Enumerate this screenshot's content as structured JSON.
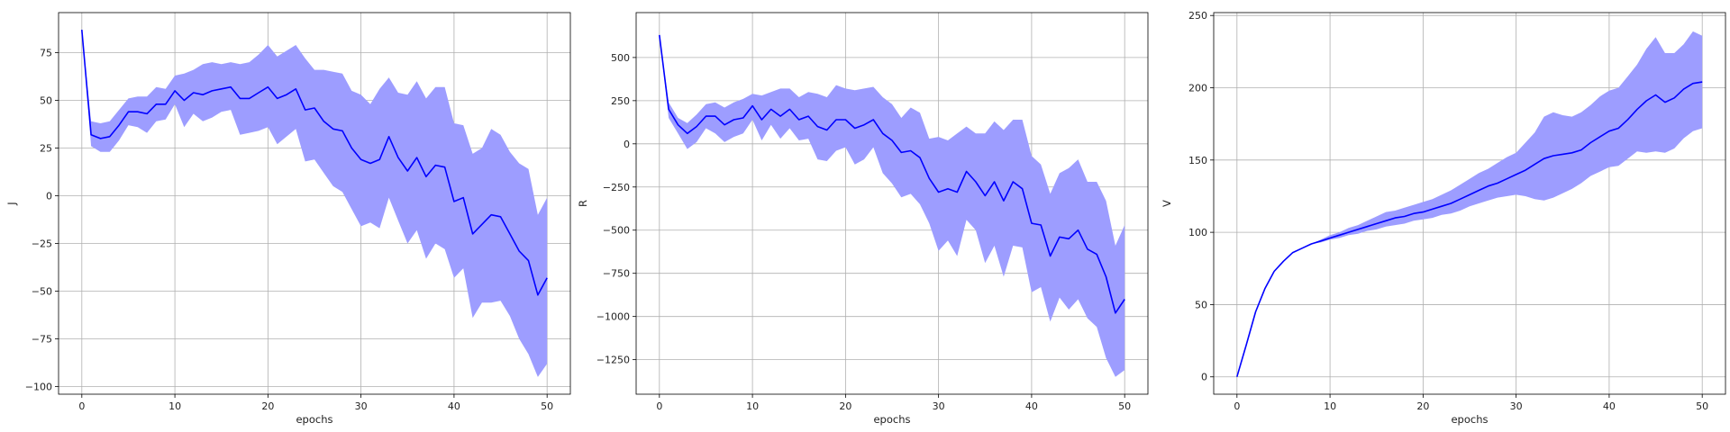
{
  "colors": {
    "line": "#0000ff",
    "band": "#9d9dff",
    "grid": "#b0b0b0",
    "frame": "#000000"
  },
  "chart_data": [
    {
      "type": "line",
      "xlabel": "epochs",
      "ylabel": "J",
      "xlim": [
        -2.5,
        52.5
      ],
      "ylim": [
        -104,
        96
      ],
      "xticks": [
        0,
        10,
        20,
        30,
        40,
        50
      ],
      "yticks": [
        -100,
        -75,
        -50,
        -25,
        0,
        25,
        50,
        75
      ],
      "ytick_labels": [
        "−100",
        "−75",
        "−50",
        "−25",
        "0",
        "25",
        "50",
        "75"
      ],
      "xtick_labels": [
        "0",
        "10",
        "20",
        "30",
        "40",
        "50"
      ],
      "grid": true,
      "x": [
        0,
        1,
        2,
        3,
        4,
        5,
        6,
        7,
        8,
        9,
        10,
        11,
        12,
        13,
        14,
        15,
        16,
        17,
        18,
        19,
        20,
        21,
        22,
        23,
        24,
        25,
        26,
        27,
        28,
        29,
        30,
        31,
        32,
        33,
        34,
        35,
        36,
        37,
        38,
        39,
        40,
        41,
        42,
        43,
        44,
        45,
        46,
        47,
        48,
        49,
        50
      ],
      "mean": [
        87,
        32,
        30,
        31,
        37,
        44,
        44,
        43,
        48,
        48,
        55,
        50,
        54,
        53,
        55,
        56,
        57,
        51,
        51,
        54,
        57,
        51,
        53,
        56,
        45,
        46,
        39,
        35,
        34,
        25,
        19,
        17,
        19,
        31,
        20,
        13,
        20,
        10,
        16,
        15,
        -3,
        -1,
        -20,
        -15,
        -10,
        -11,
        -20,
        -29,
        -34,
        -52,
        -43
      ],
      "upper": [
        87,
        39,
        38,
        39,
        45,
        51,
        52,
        52,
        57,
        56,
        63,
        64,
        66,
        69,
        70,
        69,
        70,
        69,
        70,
        74,
        79,
        73,
        76,
        79,
        72,
        66,
        66,
        65,
        64,
        55,
        53,
        48,
        56,
        62,
        54,
        53,
        60,
        51,
        57,
        57,
        38,
        37,
        22,
        25,
        35,
        32,
        23,
        17,
        14,
        -10,
        -1
      ],
      "lower": [
        87,
        26,
        23,
        23,
        29,
        37,
        36,
        33,
        39,
        40,
        48,
        36,
        43,
        39,
        41,
        44,
        45,
        32,
        33,
        34,
        36,
        27,
        31,
        35,
        18,
        19,
        12,
        5,
        2,
        -7,
        -16,
        -14,
        -17,
        -1,
        -13,
        -25,
        -18,
        -33,
        -25,
        -28,
        -43,
        -38,
        -64,
        -56,
        -56,
        -55,
        -63,
        -75,
        -83,
        -95,
        -88
      ]
    },
    {
      "type": "line",
      "xlabel": "epochs",
      "ylabel": "R",
      "xlim": [
        -2.5,
        52.5
      ],
      "ylim": [
        -1450,
        760
      ],
      "xticks": [
        0,
        10,
        20,
        30,
        40,
        50
      ],
      "yticks": [
        -1250,
        -1000,
        -750,
        -500,
        -250,
        0,
        250,
        500
      ],
      "ytick_labels": [
        "−1250",
        "−1000",
        "−750",
        "−500",
        "−250",
        "0",
        "250",
        "500"
      ],
      "xtick_labels": [
        "0",
        "10",
        "20",
        "30",
        "40",
        "50"
      ],
      "grid": true,
      "x": [
        0,
        1,
        2,
        3,
        4,
        5,
        6,
        7,
        8,
        9,
        10,
        11,
        12,
        13,
        14,
        15,
        16,
        17,
        18,
        19,
        20,
        21,
        22,
        23,
        24,
        25,
        26,
        27,
        28,
        29,
        30,
        31,
        32,
        33,
        34,
        35,
        36,
        37,
        38,
        39,
        40,
        41,
        42,
        43,
        44,
        45,
        46,
        47,
        48,
        49,
        50
      ],
      "mean": [
        630,
        200,
        110,
        60,
        100,
        160,
        160,
        110,
        140,
        150,
        220,
        140,
        200,
        160,
        200,
        140,
        160,
        100,
        80,
        140,
        140,
        90,
        110,
        140,
        60,
        20,
        -50,
        -40,
        -80,
        -200,
        -280,
        -260,
        -280,
        -160,
        -220,
        -300,
        -220,
        -330,
        -220,
        -260,
        -460,
        -470,
        -650,
        -540,
        -550,
        -500,
        -610,
        -640,
        -770,
        -980,
        -900
      ],
      "upper": [
        630,
        240,
        150,
        120,
        170,
        230,
        240,
        210,
        240,
        260,
        290,
        280,
        300,
        320,
        320,
        270,
        300,
        290,
        270,
        340,
        320,
        310,
        320,
        330,
        270,
        230,
        150,
        210,
        180,
        30,
        40,
        20,
        60,
        100,
        60,
        60,
        130,
        80,
        140,
        140,
        -70,
        -120,
        -290,
        -170,
        -140,
        -90,
        -220,
        -220,
        -330,
        -590,
        -470
      ],
      "lower": [
        630,
        150,
        60,
        -30,
        10,
        90,
        60,
        10,
        40,
        60,
        140,
        20,
        110,
        30,
        90,
        20,
        30,
        -90,
        -100,
        -40,
        -20,
        -120,
        -90,
        -20,
        -170,
        -230,
        -310,
        -290,
        -350,
        -460,
        -620,
        -560,
        -650,
        -440,
        -500,
        -690,
        -590,
        -770,
        -590,
        -600,
        -860,
        -830,
        -1030,
        -890,
        -960,
        -900,
        -1010,
        -1060,
        -1240,
        -1350,
        -1310
      ]
    },
    {
      "type": "line",
      "xlabel": "epochs",
      "ylabel": "V",
      "xlim": [
        -2.5,
        52.5
      ],
      "ylim": [
        -12,
        252
      ],
      "xticks": [
        0,
        10,
        20,
        30,
        40,
        50
      ],
      "yticks": [
        0,
        50,
        100,
        150,
        200,
        250
      ],
      "ytick_labels": [
        "0",
        "50",
        "100",
        "150",
        "200",
        "250"
      ],
      "xtick_labels": [
        "0",
        "10",
        "20",
        "30",
        "40",
        "50"
      ],
      "grid": true,
      "x": [
        0,
        1,
        2,
        3,
        4,
        5,
        6,
        7,
        8,
        9,
        10,
        11,
        12,
        13,
        14,
        15,
        16,
        17,
        18,
        19,
        20,
        21,
        22,
        23,
        24,
        25,
        26,
        27,
        28,
        29,
        30,
        31,
        32,
        33,
        34,
        35,
        36,
        37,
        38,
        39,
        40,
        41,
        42,
        43,
        44,
        45,
        46,
        47,
        48,
        49,
        50
      ],
      "mean": [
        0,
        22,
        45,
        61,
        73,
        80,
        86,
        89,
        92,
        94,
        96,
        98,
        100,
        102,
        104,
        106,
        108,
        110,
        111,
        113,
        114,
        116,
        118,
        120,
        123,
        126,
        129,
        132,
        134,
        137,
        140,
        143,
        147,
        151,
        153,
        154,
        155,
        157,
        162,
        166,
        170,
        172,
        178,
        185,
        191,
        195,
        190,
        193,
        199,
        203,
        204
      ],
      "upper": [
        0,
        22,
        45,
        61,
        73,
        80,
        86,
        89,
        92,
        95,
        98,
        100,
        103,
        105,
        108,
        111,
        114,
        115,
        117,
        119,
        121,
        123,
        126,
        129,
        133,
        137,
        141,
        144,
        148,
        152,
        155,
        162,
        169,
        180,
        183,
        181,
        180,
        183,
        188,
        194,
        198,
        200,
        208,
        216,
        227,
        235,
        224,
        224,
        230,
        239,
        236
      ],
      "lower": [
        0,
        22,
        45,
        61,
        73,
        80,
        86,
        89,
        92,
        93,
        95,
        96,
        98,
        99,
        101,
        102,
        104,
        105,
        106,
        108,
        109,
        110,
        112,
        113,
        115,
        118,
        120,
        122,
        124,
        125,
        126,
        125,
        123,
        122,
        124,
        127,
        130,
        134,
        139,
        142,
        145,
        146,
        151,
        156,
        155,
        156,
        155,
        158,
        165,
        170,
        172
      ]
    }
  ]
}
